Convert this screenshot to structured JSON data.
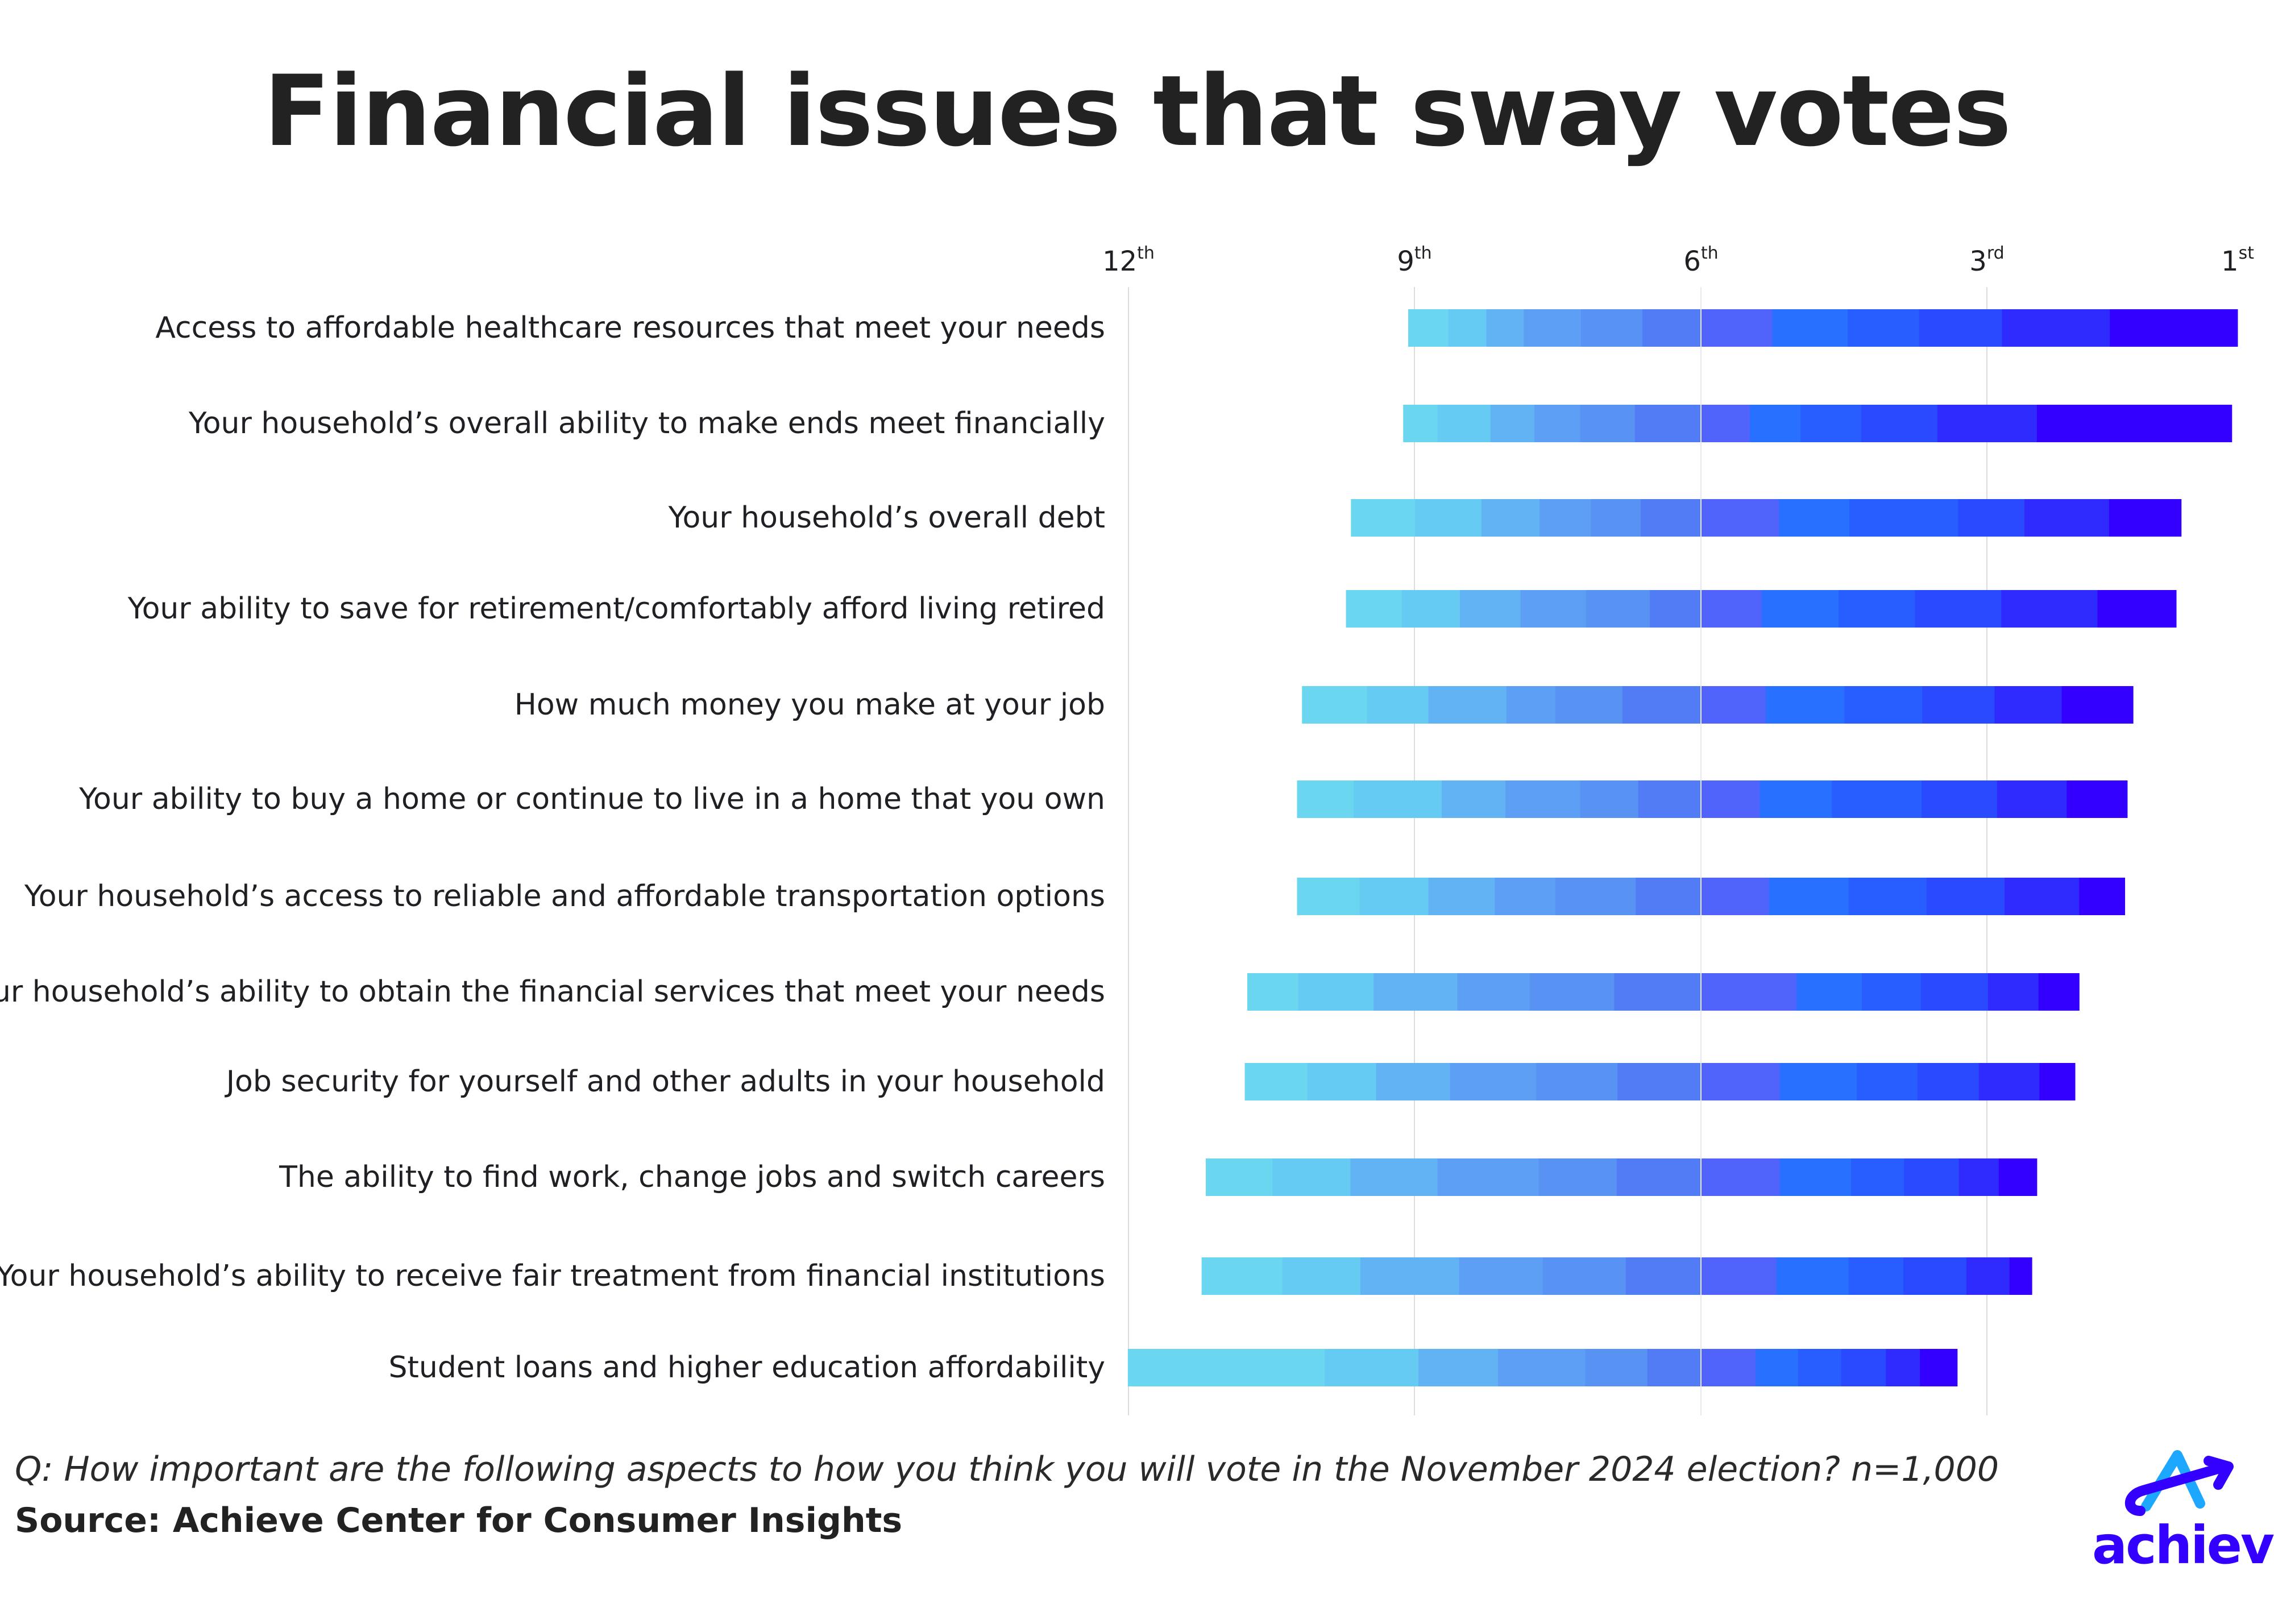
{
  "title": "Financial issues that sway votes",
  "footer": {
    "question": "Q: How important are the following aspects to how you think you will vote in the November 2024 election? n=1,000",
    "source": "Source: Achieve Center for Consumer Insights"
  },
  "logo": {
    "text": "achieve"
  },
  "chart_data": {
    "type": "bar",
    "orientation": "horizontal",
    "stacked": "diverging",
    "unit": "percent of respondents",
    "grid": true,
    "axis_ticks": [
      {
        "num": "12",
        "suffix": "th"
      },
      {
        "num": "9",
        "suffix": "th"
      },
      {
        "num": "6",
        "suffix": "th"
      },
      {
        "num": "3",
        "suffix": "rd"
      },
      {
        "num": "1",
        "suffix": "st"
      }
    ],
    "rank_order": [
      "1st",
      "2nd",
      "3rd",
      "4th",
      "5th",
      "6th",
      "7th",
      "8th",
      "9th",
      "10th",
      "11th",
      "12th"
    ],
    "rank_colors": [
      "#3300FF",
      "#2F2BFF",
      "#2A4AFF",
      "#285EFF",
      "#2870FF",
      "#5063FA",
      "#527CF5",
      "#5893F4",
      "#5D9FF4",
      "#62B3F4",
      "#66CBF3",
      "#6AD6F0"
    ],
    "categories": [
      "Access to affordable healthcare resources that meet your needs",
      "Your household’s overall ability to make ends meet financially",
      "Your household’s overall debt",
      "Your ability to save for retirement/comfortably afford living retired",
      "How much money you make at your job",
      "Your ability to buy a home or continue to live in a home that you own",
      "Your household’s access to reliable and affordable transportation options",
      "Your household’s ability to obtain the financial services that meet your needs",
      "Job security for yourself and other adults in your household",
      "The ability to find work, change jobs and switch careers",
      "Your household’s ability to receive fair treatment from financial institutions",
      "Student loans and higher education affordability"
    ],
    "values_by_rank_1st_to_12th": [
      [
        15.4,
        13.0,
        10.0,
        8.6,
        9.1,
        8.6,
        7.1,
        7.4,
        6.9,
        4.5,
        4.6,
        4.8
      ],
      [
        23.5,
        12.0,
        9.2,
        7.3,
        6.1,
        5.9,
        8.0,
        6.6,
        5.5,
        5.3,
        6.4,
        4.1
      ],
      [
        8.7,
        10.2,
        8.0,
        13.1,
        8.5,
        9.4,
        7.3,
        6.0,
        6.2,
        7.0,
        8.0,
        7.7
      ],
      [
        9.5,
        11.6,
        10.4,
        9.2,
        9.3,
        7.3,
        6.2,
        7.7,
        7.9,
        7.3,
        7.0,
        6.7
      ],
      [
        8.6,
        8.1,
        8.7,
        9.4,
        9.5,
        7.8,
        9.5,
        8.1,
        5.9,
        9.4,
        7.4,
        7.8
      ],
      [
        7.3,
        8.4,
        9.1,
        10.8,
        8.7,
        7.1,
        7.6,
        7.0,
        9.0,
        7.7,
        10.6,
        6.8
      ],
      [
        5.5,
        9.0,
        9.4,
        9.4,
        9.6,
        8.2,
        7.9,
        9.7,
        7.3,
        8.0,
        8.3,
        7.5
      ],
      [
        4.9,
        6.1,
        8.1,
        7.1,
        7.9,
        11.5,
        10.5,
        10.2,
        8.7,
        10.1,
        9.1,
        6.1
      ],
      [
        4.3,
        7.3,
        7.4,
        7.3,
        9.3,
        9.5,
        10.1,
        9.8,
        10.4,
        8.9,
        8.3,
        7.5
      ],
      [
        4.6,
        4.8,
        6.6,
        6.4,
        8.6,
        9.5,
        10.2,
        9.4,
        12.2,
        10.5,
        9.4,
        8.0
      ],
      [
        2.7,
        5.2,
        7.6,
        6.6,
        8.7,
        9.1,
        9.1,
        10.0,
        10.1,
        11.9,
        9.4,
        9.7
      ],
      [
        4.5,
        4.1,
        5.4,
        5.2,
        5.1,
        6.6,
        6.5,
        7.5,
        10.5,
        9.6,
        11.3,
        23.7
      ]
    ]
  }
}
